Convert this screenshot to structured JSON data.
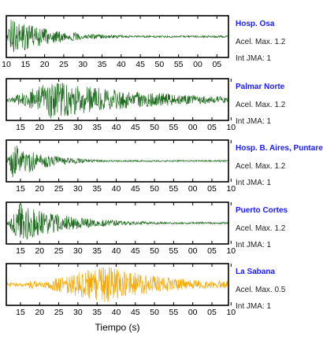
{
  "chart_data": [
    {
      "type": "line",
      "station": "Hosp. Osa",
      "accel_label": "Acel. Max. 1.2",
      "intensity_label": "Int JMA: 1",
      "color": "#1f6b1f",
      "x_ticks": [
        "10",
        "15",
        "20",
        "25",
        "30",
        "35",
        "40",
        "45",
        "50",
        "55",
        "00",
        "05"
      ],
      "peak_amplitude": 1.2,
      "envelope": {
        "onset": 0.0,
        "peak": 0.02,
        "decay": 5.5,
        "floor": 0.05,
        "noise": 0.15
      }
    },
    {
      "type": "line",
      "station": "Palmar Norte",
      "accel_label": "Acel. Max. 1.2",
      "intensity_label": "Int JMA: 1",
      "color": "#1f6b1f",
      "x_ticks": [
        "15",
        "20",
        "25",
        "30",
        "35",
        "40",
        "45",
        "50",
        "55",
        "00",
        "05",
        "10"
      ],
      "peak_amplitude": 1.2,
      "envelope": {
        "onset": 0.0,
        "peak": 0.2,
        "decay": 2.2,
        "floor": 0.12,
        "noise": 0.22
      }
    },
    {
      "type": "line",
      "station": "Hosp. B. Aires, Puntare",
      "accel_label": "Acel. Max. 1.2",
      "intensity_label": "Int JMA: 1",
      "color": "#1f6b1f",
      "x_ticks": [
        "15",
        "20",
        "25",
        "30",
        "35",
        "40",
        "45",
        "50",
        "55",
        "00",
        "05",
        "10"
      ],
      "peak_amplitude": 1.2,
      "envelope": {
        "onset": 0.0,
        "peak": 0.03,
        "decay": 7.0,
        "floor": 0.04,
        "noise": 0.1
      }
    },
    {
      "type": "line",
      "station": "Puerto Cortes",
      "accel_label": "Acel. Max. 1.2",
      "intensity_label": "Int JMA: 1",
      "color": "#1f6b1f",
      "x_ticks": [
        "15",
        "20",
        "25",
        "30",
        "35",
        "40",
        "45",
        "50",
        "55",
        "00",
        "05",
        "10"
      ],
      "peak_amplitude": 1.2,
      "envelope": {
        "onset": 0.0,
        "peak": 0.06,
        "decay": 4.5,
        "floor": 0.05,
        "noise": 0.12
      }
    },
    {
      "type": "line",
      "station": "La Sabana",
      "accel_label": "Acel. Max. 0.5",
      "intensity_label": "Int JMA: 1",
      "color": "#f5a800",
      "x_ticks": [
        "15",
        "20",
        "25",
        "30",
        "35",
        "40",
        "45",
        "50",
        "55",
        "00",
        "05",
        "10"
      ],
      "peak_amplitude": 0.5,
      "envelope": {
        "onset": 0.1,
        "peak": 0.45,
        "decay": 3.5,
        "floor": 0.2,
        "noise": 0.25
      },
      "xlabel": "Tiempo (s)"
    }
  ]
}
